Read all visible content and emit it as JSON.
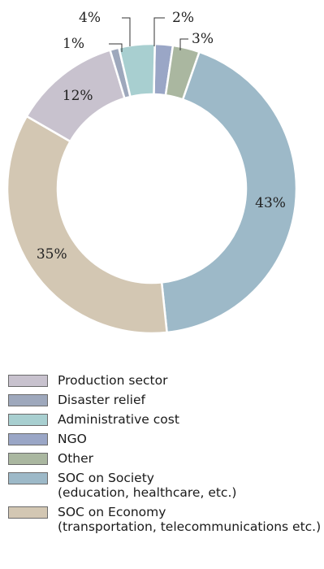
{
  "chart_data": {
    "type": "pie",
    "donut": true,
    "categories": [
      "NGO",
      "Other",
      "SOC on Society",
      "SOC on Economy",
      "Production sector",
      "Disaster relief",
      "Administrative cost"
    ],
    "values": [
      2,
      3,
      43,
      35,
      12,
      1,
      4
    ],
    "labels": [
      "2%",
      "3%",
      "43%",
      "35%",
      "12%",
      "1%",
      "4%"
    ],
    "colors": [
      "#9aa6c6",
      "#aab7a0",
      "#9db9c8",
      "#d3c7b3",
      "#c8c2ce",
      "#9ea8bc",
      "#a8cfd0"
    ],
    "legend_position": "bottom-left"
  },
  "legend": [
    {
      "label": "Production sector",
      "color": "#c8c2ce"
    },
    {
      "label": "Disaster relief",
      "color": "#9ea8bc"
    },
    {
      "label": "Administrative cost",
      "color": "#a8cfd0"
    },
    {
      "label": "NGO",
      "color": "#9aa6c6"
    },
    {
      "label": "Other",
      "color": "#aab7a0"
    },
    {
      "label": "SOC on Society",
      "sublabel": "(education, healthcare, etc.)",
      "color": "#9db9c8"
    },
    {
      "label": "SOC on Economy",
      "sublabel": "(transportation, telecommunications etc.)",
      "color": "#d3c7b3"
    }
  ]
}
